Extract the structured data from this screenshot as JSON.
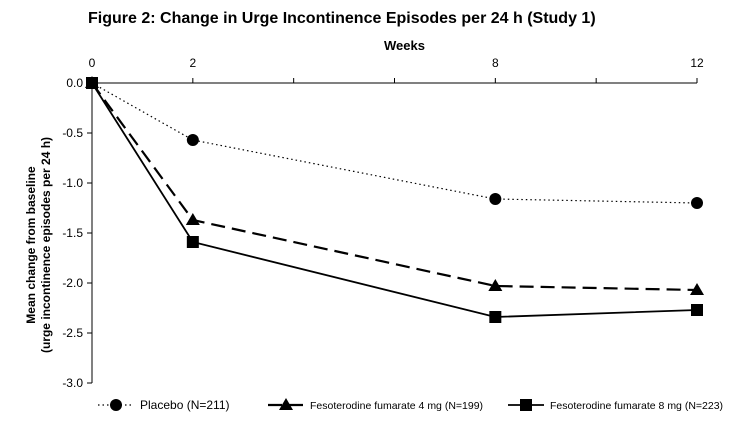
{
  "chart_data": {
    "type": "line",
    "title": "Figure 2: Change in Urge Incontinence Episodes per 24 h (Study 1)",
    "xlabel": "Weeks",
    "ylabel_lines": [
      "Mean change from baseline",
      "(urge incontinence episodes per 24 h)"
    ],
    "x": [
      0,
      2,
      8,
      12
    ],
    "x_ticks": [
      "0",
      "2",
      "8",
      "12"
    ],
    "xlim": [
      0,
      12
    ],
    "y_ticks": [
      "0.0",
      "-0.5",
      "-1.0",
      "-1.5",
      "-2.0",
      "-2.5",
      "-3.0"
    ],
    "ylim": [
      -3.0,
      0.0
    ],
    "x_axis_position": "top",
    "grid": false,
    "legend_position": "bottom",
    "series": [
      {
        "name": "Placebo (N=211)",
        "values": [
          0,
          -0.57,
          -1.16,
          -1.2
        ],
        "marker": "circle",
        "dash": "dotted",
        "color": "#000000"
      },
      {
        "name": "Fesoterodine fumarate 4 mg (N=199)",
        "values": [
          0,
          -1.37,
          -2.03,
          -2.07
        ],
        "marker": "triangle",
        "dash": "dashed",
        "color": "#000000"
      },
      {
        "name": "Fesoterodine fumarate 8 mg (N=223)",
        "values": [
          0,
          -1.59,
          -2.34,
          -2.27
        ],
        "marker": "square",
        "dash": "solid",
        "color": "#000000"
      }
    ]
  }
}
